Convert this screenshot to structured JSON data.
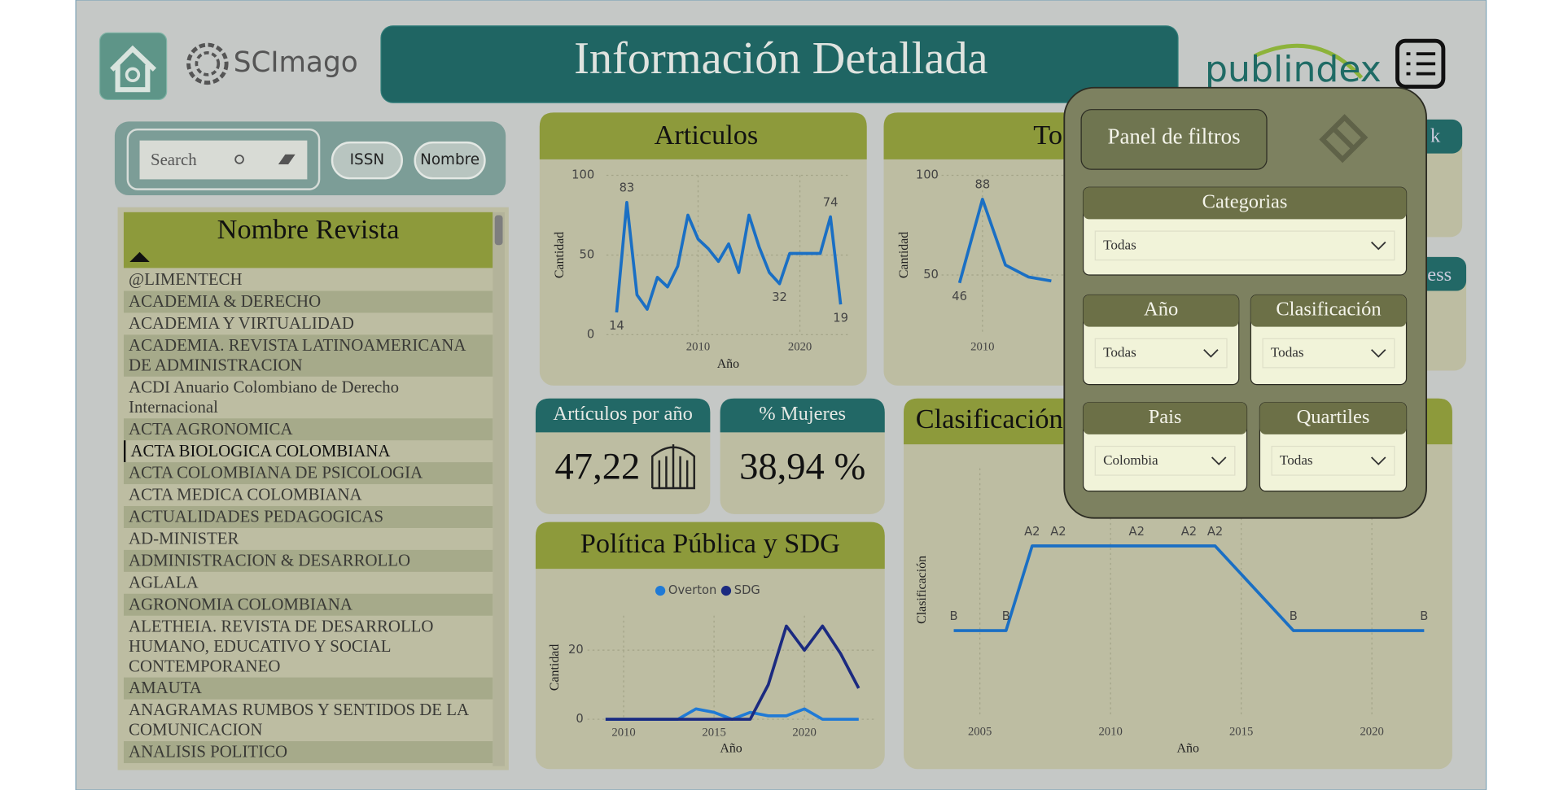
{
  "header": {
    "title": "Información Detallada",
    "scimago": "SCImago",
    "publindex": "publindex"
  },
  "search": {
    "placeholder": "Search",
    "buttons": [
      "ISSN",
      "Nombre"
    ]
  },
  "journal_list": {
    "title": "Nombre Revista",
    "rows": [
      "@LIMENTECH",
      "ACADEMIA & DERECHO",
      "ACADEMIA Y VIRTUALIDAD",
      "ACADEMIA. REVISTA LATINOAMERICANA DE ADMINISTRACION",
      "ACDI Anuario Colombiano de Derecho Internacional",
      "ACTA AGRONOMICA",
      "ACTA BIOLOGICA COLOMBIANA",
      "ACTA COLOMBIANA DE PSICOLOGIA",
      "ACTA MEDICA COLOMBIANA",
      "ACTUALIDADES PEDAGOGICAS",
      "AD-MINISTER",
      "ADMINISTRACION & DESARROLLO",
      "AGLALA",
      "AGRONOMIA COLOMBIANA",
      "ALETHEIA. REVISTA DE DESARROLLO HUMANO, EDUCATIVO Y SOCIAL CONTEMPORANEO",
      "AMAUTA",
      "ANAGRAMAS RUMBOS Y SENTIDOS DE LA COMUNICACION",
      "ANALISIS POLITICO"
    ]
  },
  "kpis": [
    {
      "title": "Artículos por año",
      "value": 47.22,
      "value_label": "47,22"
    },
    {
      "title": "% Mujeres",
      "value": 38.94,
      "value_label": "38,94 %"
    }
  ],
  "partial_titles": [
    "k",
    "ess"
  ],
  "filter_panel": {
    "title": "Panel de filtros",
    "filters": [
      {
        "label": "Categorias",
        "selected": "Todas"
      },
      {
        "label": "Año",
        "selected": "Todas"
      },
      {
        "label": "Clasificación",
        "selected": "Todas"
      },
      {
        "label": "Pais",
        "selected": "Colombia"
      },
      {
        "label": "Quartiles",
        "selected": "Todas"
      }
    ]
  },
  "chart_data": [
    {
      "type": "line",
      "title": "Articulos",
      "x_label": "Año",
      "y_label": "Cantidad",
      "x": [
        2002,
        2003,
        2004,
        2005,
        2006,
        2007,
        2008,
        2009,
        2010,
        2011,
        2012,
        2013,
        2014,
        2015,
        2016,
        2017,
        2018,
        2019,
        2020,
        2021,
        2022,
        2023,
        2024
      ],
      "xlim": [
        2001,
        2025
      ],
      "xticks": [
        2010,
        2020
      ],
      "ylim": [
        0,
        100
      ],
      "yticks": [
        0,
        50,
        100
      ],
      "grid": true,
      "series": [
        {
          "color": "#1a6fc4",
          "values": [
            14,
            83,
            25,
            16,
            36,
            30,
            43,
            75,
            60,
            54,
            46,
            57,
            39,
            75,
            55,
            39,
            32,
            51,
            51,
            51,
            51,
            74,
            19
          ],
          "value_labels": [
            "14",
            "83",
            null,
            null,
            null,
            null,
            null,
            null,
            null,
            null,
            null,
            null,
            null,
            null,
            null,
            null,
            "32",
            null,
            null,
            null,
            null,
            "74",
            "19"
          ]
        }
      ]
    },
    {
      "type": "line",
      "title": "To",
      "y_label": "Cantidad",
      "x": [
        2009,
        2010,
        2011,
        2012,
        2013
      ],
      "xlim": [
        2008,
        2019
      ],
      "xticks": [
        2010
      ],
      "ylim": [
        20,
        100
      ],
      "yticks": [
        50,
        100
      ],
      "grid": true,
      "series": [
        {
          "color": "#1a6fc4",
          "values": [
            46,
            88,
            55,
            49,
            47
          ],
          "value_labels": [
            "46",
            "88",
            null,
            null,
            null
          ]
        }
      ]
    },
    {
      "type": "line",
      "title": "Política Pública y SDG",
      "x_label": "Año",
      "y_label": "Cantidad",
      "x": [
        2009,
        2010,
        2011,
        2012,
        2013,
        2014,
        2015,
        2016,
        2017,
        2018,
        2019,
        2020,
        2021,
        2022,
        2023
      ],
      "xlim": [
        2008,
        2024
      ],
      "xticks": [
        2010,
        2015,
        2020
      ],
      "ylim": [
        0,
        30
      ],
      "yticks": [
        0,
        20
      ],
      "grid": true,
      "series": [
        {
          "name": "Overton",
          "color": "#1f7ad6",
          "values": [
            0,
            0,
            0,
            0,
            0,
            3,
            2,
            0,
            2,
            1,
            1,
            3,
            0,
            0,
            0
          ]
        },
        {
          "name": "SDG",
          "color": "#1b2a80",
          "values": [
            0,
            0,
            0,
            0,
            0,
            0,
            0,
            0,
            0,
            10,
            27,
            20,
            27,
            19,
            9
          ]
        }
      ]
    },
    {
      "type": "category-line",
      "title": "Clasificación",
      "x_label": "Año",
      "y_label": "Clasificación",
      "x": [
        2004,
        2006,
        2007,
        2008,
        2011,
        2013,
        2014,
        2017,
        2022
      ],
      "xlim": [
        2003,
        2023
      ],
      "xticks": [
        2005,
        2010,
        2015,
        2020
      ],
      "y_categories": [
        "B",
        "A2"
      ],
      "grid": true,
      "series": [
        {
          "color": "#1a6fc4",
          "values": [
            "B",
            "B",
            "A2",
            "A2",
            "A2",
            "A2",
            "A2",
            "B",
            "B"
          ]
        }
      ]
    }
  ]
}
